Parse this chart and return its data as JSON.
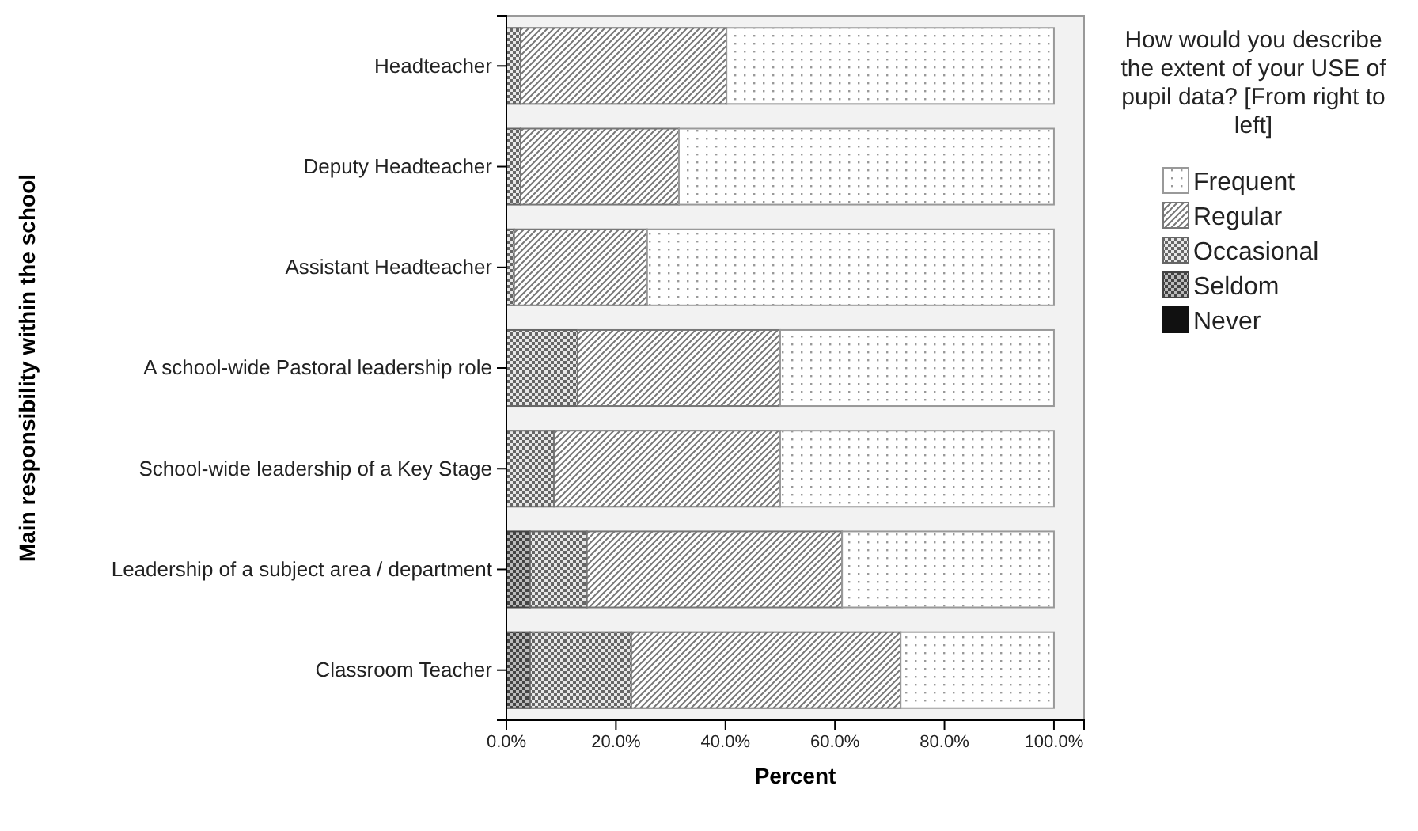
{
  "chart_data": {
    "type": "bar",
    "orientation": "horizontal",
    "stacked": true,
    "xlabel": "Percent",
    "ylabel": "Main responsibility within the school",
    "legend_title": "How would you describe the extent of your USE of pupil data? [From right to left]",
    "legend": "top right",
    "grid": false,
    "categories": [
      "Headteacher",
      "Deputy Headteacher",
      "Assistant Headteacher",
      "A school-wide Pastoral leadership role",
      "School-wide leadership of a Key Stage",
      "Leadership of a subject area / department",
      "Classroom Teacher"
    ],
    "xlim": [
      0,
      105.5
    ],
    "xticks": [
      {
        "value": 0,
        "label": "0.0%"
      },
      {
        "value": 20,
        "label": "20.0%"
      },
      {
        "value": 40,
        "label": "40.0%"
      },
      {
        "value": 60,
        "label": "60.0%"
      },
      {
        "value": 80,
        "label": "80.0%"
      },
      {
        "value": 100,
        "label": "100.0%"
      }
    ],
    "series": [
      {
        "name": "Never",
        "color": "#111111",
        "values": [
          0,
          0,
          0,
          0,
          0,
          0,
          0
        ]
      },
      {
        "name": "Seldom",
        "color": "#444444",
        "values": [
          0,
          0,
          0,
          0,
          0,
          4.3,
          4.3
        ]
      },
      {
        "name": "Occasional",
        "color": "#666666",
        "values": [
          2.6,
          2.6,
          1.4,
          13.0,
          8.7,
          10.4,
          18.5
        ]
      },
      {
        "name": "Regular",
        "color": "#777777",
        "values": [
          37.6,
          28.9,
          24.3,
          37.0,
          41.3,
          46.6,
          49.2
        ]
      },
      {
        "name": "Frequent",
        "color": "#999999",
        "values": [
          59.8,
          68.5,
          74.3,
          50.0,
          50.0,
          38.7,
          28.0
        ]
      }
    ]
  }
}
